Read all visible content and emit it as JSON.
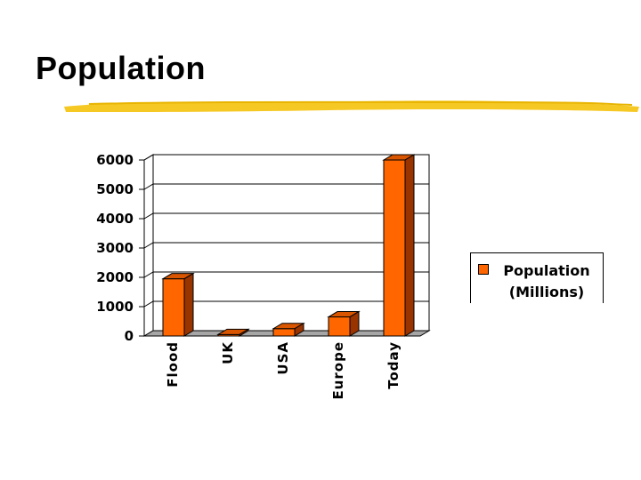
{
  "slide": {
    "title": "Population"
  },
  "colors": {
    "bar_front": "#ff6600",
    "bar_top": "#d95500",
    "bar_side": "#993300",
    "underline": "#f5c518"
  },
  "chart_data": {
    "type": "bar",
    "categories": [
      "Flood",
      "UK",
      "USA",
      "Europe",
      "Today"
    ],
    "series": [
      {
        "name": "Population (Millions)",
        "values": [
          1950,
          50,
          250,
          650,
          6000
        ]
      }
    ],
    "ylim": [
      0,
      6000
    ],
    "yticks": [
      0,
      1000,
      2000,
      3000,
      4000,
      5000,
      6000
    ],
    "grid": true,
    "legend_position": "right",
    "legend": {
      "line1": "Population",
      "line2": "(Millions)"
    }
  }
}
